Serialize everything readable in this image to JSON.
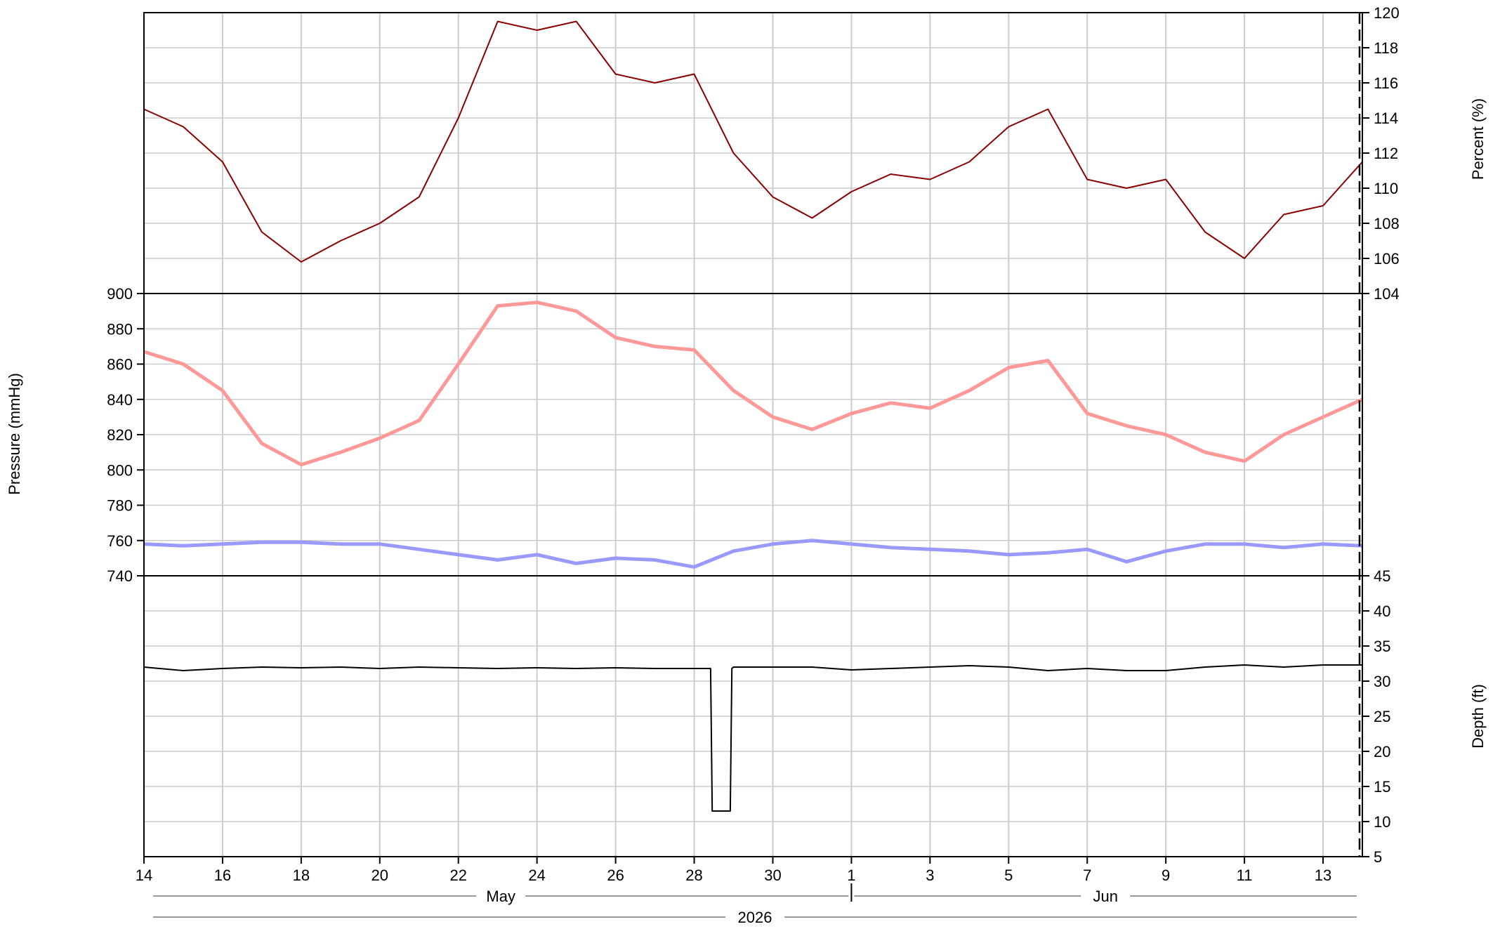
{
  "chart_data": [
    {
      "type": "line",
      "panel": "top",
      "ylabel": "Percent (%)",
      "ylim": [
        104,
        120
      ],
      "yticks": [
        104,
        106,
        108,
        110,
        112,
        114,
        116,
        118,
        120
      ],
      "y_axis_side": "right",
      "x": [
        "2026-05-14",
        "2026-05-15",
        "2026-05-16",
        "2026-05-17",
        "2026-05-18",
        "2026-05-19",
        "2026-05-20",
        "2026-05-21",
        "2026-05-22",
        "2026-05-23",
        "2026-05-24",
        "2026-05-25",
        "2026-05-26",
        "2026-05-27",
        "2026-05-28",
        "2026-05-29",
        "2026-05-30",
        "2026-05-31",
        "2026-06-01",
        "2026-06-02",
        "2026-06-03",
        "2026-06-04",
        "2026-06-05",
        "2026-06-06",
        "2026-06-07",
        "2026-06-08",
        "2026-06-09",
        "2026-06-10",
        "2026-06-11",
        "2026-06-12",
        "2026-06-13",
        "2026-06-14"
      ],
      "series": [
        {
          "color": "#8b0000",
          "values": [
            114.5,
            113.5,
            111.5,
            107.5,
            105.8,
            107.0,
            108.0,
            109.5,
            114.0,
            119.5,
            119.0,
            119.5,
            116.5,
            116.0,
            116.5,
            112.0,
            109.5,
            108.3,
            109.8,
            110.8,
            110.5,
            111.5,
            113.5,
            114.5,
            110.5,
            110.0,
            110.5,
            107.5,
            106.0,
            108.5,
            109.0,
            111.5
          ]
        }
      ]
    },
    {
      "type": "line",
      "panel": "middle",
      "ylabel": "Pressure (mmHg)",
      "ylim": [
        740,
        900
      ],
      "yticks": [
        740,
        760,
        780,
        800,
        820,
        840,
        860,
        880,
        900
      ],
      "y_axis_side": "left",
      "x": [
        "2026-05-14",
        "2026-05-15",
        "2026-05-16",
        "2026-05-17",
        "2026-05-18",
        "2026-05-19",
        "2026-05-20",
        "2026-05-21",
        "2026-05-22",
        "2026-05-23",
        "2026-05-24",
        "2026-05-25",
        "2026-05-26",
        "2026-05-27",
        "2026-05-28",
        "2026-05-29",
        "2026-05-30",
        "2026-05-31",
        "2026-06-01",
        "2026-06-02",
        "2026-06-03",
        "2026-06-04",
        "2026-06-05",
        "2026-06-06",
        "2026-06-07",
        "2026-06-08",
        "2026-06-09",
        "2026-06-10",
        "2026-06-11",
        "2026-06-12",
        "2026-06-13",
        "2026-06-14"
      ],
      "series": [
        {
          "color": "#ff9999",
          "values": [
            867,
            860,
            845,
            815,
            803,
            810,
            818,
            828,
            860,
            893,
            895,
            890,
            875,
            870,
            868,
            845,
            830,
            823,
            832,
            838,
            835,
            845,
            858,
            862,
            832,
            825,
            820,
            810,
            805,
            820,
            830,
            840
          ]
        },
        {
          "color": "#9999ff",
          "values": [
            758,
            757,
            758,
            759,
            759,
            758,
            758,
            755,
            752,
            749,
            752,
            747,
            750,
            749,
            745,
            754,
            758,
            760,
            758,
            756,
            755,
            754,
            752,
            753,
            755,
            748,
            754,
            758,
            758,
            756,
            758,
            757
          ]
        }
      ]
    },
    {
      "type": "line",
      "panel": "bottom",
      "ylabel": "Depth (ft)",
      "ylim": [
        5,
        45
      ],
      "yticks": [
        5,
        10,
        15,
        20,
        25,
        30,
        35,
        40,
        45
      ],
      "y_axis_side": "right",
      "x": [
        "2026-05-14",
        "2026-05-15",
        "2026-05-16",
        "2026-05-17",
        "2026-05-18",
        "2026-05-19",
        "2026-05-20",
        "2026-05-21",
        "2026-05-22",
        "2026-05-23",
        "2026-05-24",
        "2026-05-25",
        "2026-05-26",
        "2026-05-27",
        "2026-05-28",
        "2026-05-28T10:00",
        "2026-05-28T11:00",
        "2026-05-28T22:00",
        "2026-05-28T23:00",
        "2026-05-29",
        "2026-05-30",
        "2026-05-31",
        "2026-06-01",
        "2026-06-02",
        "2026-06-03",
        "2026-06-04",
        "2026-06-05",
        "2026-06-06",
        "2026-06-07",
        "2026-06-08",
        "2026-06-09",
        "2026-06-10",
        "2026-06-11",
        "2026-06-12",
        "2026-06-13",
        "2026-06-14"
      ],
      "series": [
        {
          "color": "#000000",
          "values": [
            32.0,
            31.5,
            31.8,
            32.0,
            31.9,
            32.0,
            31.8,
            32.0,
            31.9,
            31.8,
            31.9,
            31.8,
            31.9,
            31.8,
            31.8,
            31.8,
            11.5,
            11.5,
            31.8,
            32.0,
            32.0,
            32.0,
            31.6,
            31.8,
            32.0,
            32.2,
            32.0,
            31.5,
            31.8,
            31.5,
            31.5,
            32.0,
            32.3,
            32.0,
            32.3,
            32.3
          ]
        }
      ]
    }
  ],
  "x_axis": {
    "date_range": [
      "2026-05-14",
      "2026-06-14"
    ],
    "tick_labels": [
      "14",
      "16",
      "18",
      "20",
      "22",
      "24",
      "26",
      "28",
      "30",
      "1",
      "3",
      "5",
      "7",
      "9",
      "11",
      "13"
    ],
    "tick_dates": [
      "2026-05-14",
      "2026-05-16",
      "2026-05-18",
      "2026-05-20",
      "2026-05-22",
      "2026-05-24",
      "2026-05-26",
      "2026-05-28",
      "2026-05-30",
      "2026-06-01",
      "2026-06-03",
      "2026-06-05",
      "2026-06-07",
      "2026-06-09",
      "2026-06-11",
      "2026-06-13"
    ],
    "month_labels": [
      "May",
      "Jun"
    ],
    "year_label": "2026",
    "grid": true
  },
  "colors": {
    "percent_line": "#8b0000",
    "pressure_high": "#ff9999",
    "pressure_low": "#9999ff",
    "depth_line": "#000000",
    "grid": "#cccccc"
  }
}
